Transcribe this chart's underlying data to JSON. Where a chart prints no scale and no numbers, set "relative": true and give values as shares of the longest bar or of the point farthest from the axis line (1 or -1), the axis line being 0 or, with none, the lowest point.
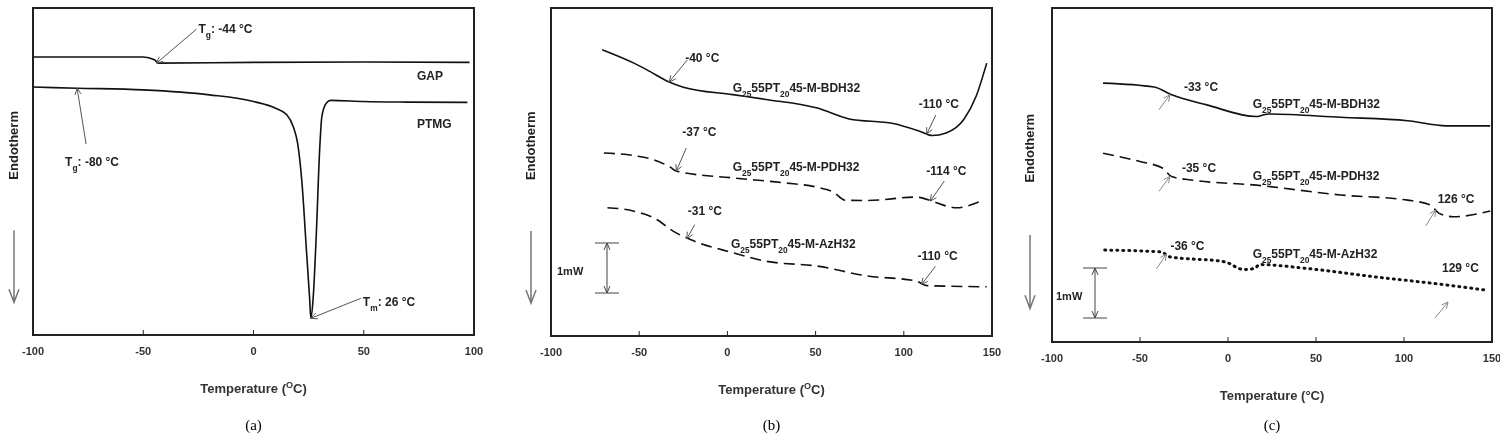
{
  "chart_data": [
    {
      "type": "line",
      "title": "(a)",
      "xlabel": "Temperature ($^{O}$C)",
      "ylabel": "Endotherm",
      "relative": true,
      "xlim": [
        -100,
        100
      ],
      "xticks": [
        -100,
        -50,
        0,
        50,
        100
      ],
      "series": [
        {
          "name": "GAP",
          "color": "#111111",
          "line_style": "solid",
          "x": [
            -100,
            -50,
            -45,
            -43,
            0,
            50,
            98
          ],
          "values": [
            1.0,
            1.0,
            0.99,
            0.978,
            0.981,
            0.982,
            0.981
          ]
        },
        {
          "name": "PTMG",
          "color": "#111111",
          "line_style": "solid",
          "x": [
            -100,
            -80,
            -50,
            -20,
            0,
            10,
            15,
            18,
            20,
            22,
            24,
            25.5,
            26,
            27,
            28.5,
            30,
            31,
            33,
            35,
            50,
            70,
            97
          ],
          "values": [
            0.892,
            0.888,
            0.882,
            0.864,
            0.84,
            0.816,
            0.793,
            0.75,
            0.69,
            0.546,
            0.306,
            0.126,
            0.06,
            0.126,
            0.366,
            0.666,
            0.786,
            0.834,
            0.844,
            0.84,
            0.838,
            0.837
          ]
        }
      ],
      "annotations": [
        {
          "text": "T$_{g}$: -44 °C",
          "x": -44,
          "y": 0.978
        },
        {
          "text": "T$_{g}$: -80 °C",
          "x": -80,
          "y": 0.888
        },
        {
          "text": "T$_{m}$: 26 °C",
          "x": 26,
          "y": 0.06
        }
      ]
    },
    {
      "type": "line",
      "title": "(b)",
      "xlabel": "Temperature ($^{O}$C)",
      "ylabel": "Endotherm",
      "relative": true,
      "xlim": [
        -100,
        150
      ],
      "xticks": [
        -100,
        -50,
        0,
        50,
        100,
        150
      ],
      "series": [
        {
          "name": "G$_{25}$55PT$_{20}$45-M-BDH32",
          "color": "#111111",
          "line_style": "solid",
          "x": [
            -71,
            -53,
            -44,
            -33,
            -25,
            3,
            22,
            51,
            69,
            94,
            109,
            116,
            124,
            134,
            141,
            147
          ],
          "values": [
            1.0,
            0.953,
            0.924,
            0.887,
            0.869,
            0.843,
            0.826,
            0.796,
            0.758,
            0.742,
            0.715,
            0.7,
            0.709,
            0.756,
            0.837,
            0.953
          ]
        },
        {
          "name": "G$_{25}$55PT$_{20}$45-M-PDH32",
          "color": "#111111",
          "line_style": "dashed",
          "x": [
            -70,
            -53,
            -42,
            -32,
            -29,
            3,
            32,
            52,
            60,
            67,
            79,
            107,
            116,
            124,
            130,
            143
          ],
          "values": [
            0.639,
            0.63,
            0.616,
            0.588,
            0.576,
            0.552,
            0.535,
            0.518,
            0.503,
            0.474,
            0.473,
            0.485,
            0.471,
            0.454,
            0.448,
            0.469
          ]
        },
        {
          "name": "G$_{25}$55PT$_{20}$45-M-AzH32",
          "color": "#111111",
          "line_style": "dashed",
          "x": [
            -68,
            -53,
            -40,
            -31,
            -21,
            3,
            22,
            51,
            79,
            107,
            113,
            147
          ],
          "values": [
            0.448,
            0.436,
            0.407,
            0.367,
            0.337,
            0.291,
            0.261,
            0.244,
            0.21,
            0.192,
            0.176,
            0.172
          ]
        }
      ],
      "annotations": [
        {
          "text": "-40 °C",
          "x": -33,
          "y": 0.887
        },
        {
          "text": "-110 °C",
          "x": 113,
          "y": 0.705
        },
        {
          "text": "-37 °C",
          "x": -29,
          "y": 0.576
        },
        {
          "text": "-114 °C",
          "x": 115,
          "y": 0.471
        },
        {
          "text": "-31 °C",
          "x": -23,
          "y": 0.34
        },
        {
          "text": "-110 °C",
          "x": 110,
          "y": 0.18
        },
        "1mW"
      ]
    },
    {
      "type": "line",
      "title": "(c)",
      "xlabel": "Temperature (°C)",
      "ylabel": "Endotherm",
      "relative": true,
      "xlim": [
        -100,
        150
      ],
      "xticks": [
        -100,
        -50,
        0,
        50,
        100,
        150
      ],
      "series": [
        {
          "name": "G$_{25}$55PT$_{20}$45-M-BDH32",
          "color": "#111111",
          "line_style": "solid",
          "x": [
            -71,
            -42,
            -32,
            -12,
            16,
            20,
            23,
            64,
            102,
            124,
            149
          ],
          "values": [
            1.0,
            0.985,
            0.955,
            0.916,
            0.871,
            0.877,
            0.881,
            0.868,
            0.855,
            0.835,
            0.835
          ]
        },
        {
          "name": "G$_{25}$55PT$_{20}$45-M-PDH32",
          "color": "#111111",
          "line_style": "dashed",
          "x": [
            -71,
            -50,
            -37,
            -32,
            -21,
            16,
            64,
            102,
            115,
            120,
            128,
            149
          ],
          "values": [
            0.729,
            0.697,
            0.671,
            0.639,
            0.626,
            0.606,
            0.568,
            0.548,
            0.529,
            0.497,
            0.484,
            0.506
          ]
        },
        {
          "name": "G$_{25}$55PT$_{20}$45-M-AzH32",
          "color": "#111111",
          "line_style": "dotted",
          "x": [
            -70,
            -38,
            -33,
            -2,
            9,
            15,
            18,
            45,
            83,
            121,
            147
          ],
          "values": [
            0.355,
            0.348,
            0.329,
            0.31,
            0.28,
            0.284,
            0.299,
            0.284,
            0.252,
            0.223,
            0.2
          ]
        }
      ],
      "annotations": [
        {
          "text": "-33 °C",
          "x": -33,
          "y": 0.955
        },
        {
          "text": "-35 °C",
          "x": -33,
          "y": 0.64
        },
        {
          "text": "126 °C",
          "x": 118,
          "y": 0.51
        },
        {
          "text": "-36 °C",
          "x": -35,
          "y": 0.34
        },
        "129 °C",
        "1mW"
      ]
    }
  ]
}
